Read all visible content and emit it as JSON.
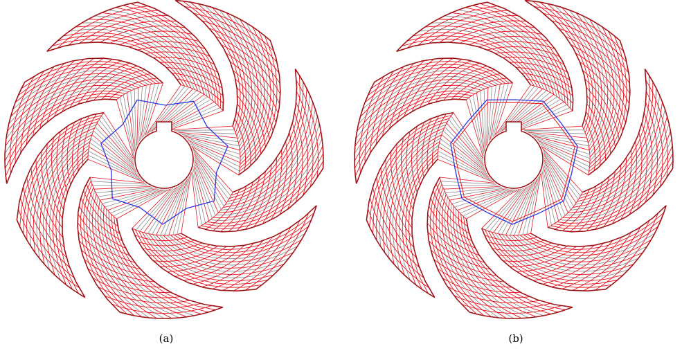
{
  "figure": {
    "panels": [
      {
        "id": "a",
        "caption": "(a)",
        "interface": "polygon"
      },
      {
        "id": "b",
        "caption": "(b)",
        "interface": "aligned"
      }
    ],
    "blade_count": 7,
    "colors": {
      "mesh_edge": "#e8141e",
      "mesh_inner": "#8c8c8c",
      "boundary": "#a01418",
      "interface": "#2a33e0"
    }
  }
}
